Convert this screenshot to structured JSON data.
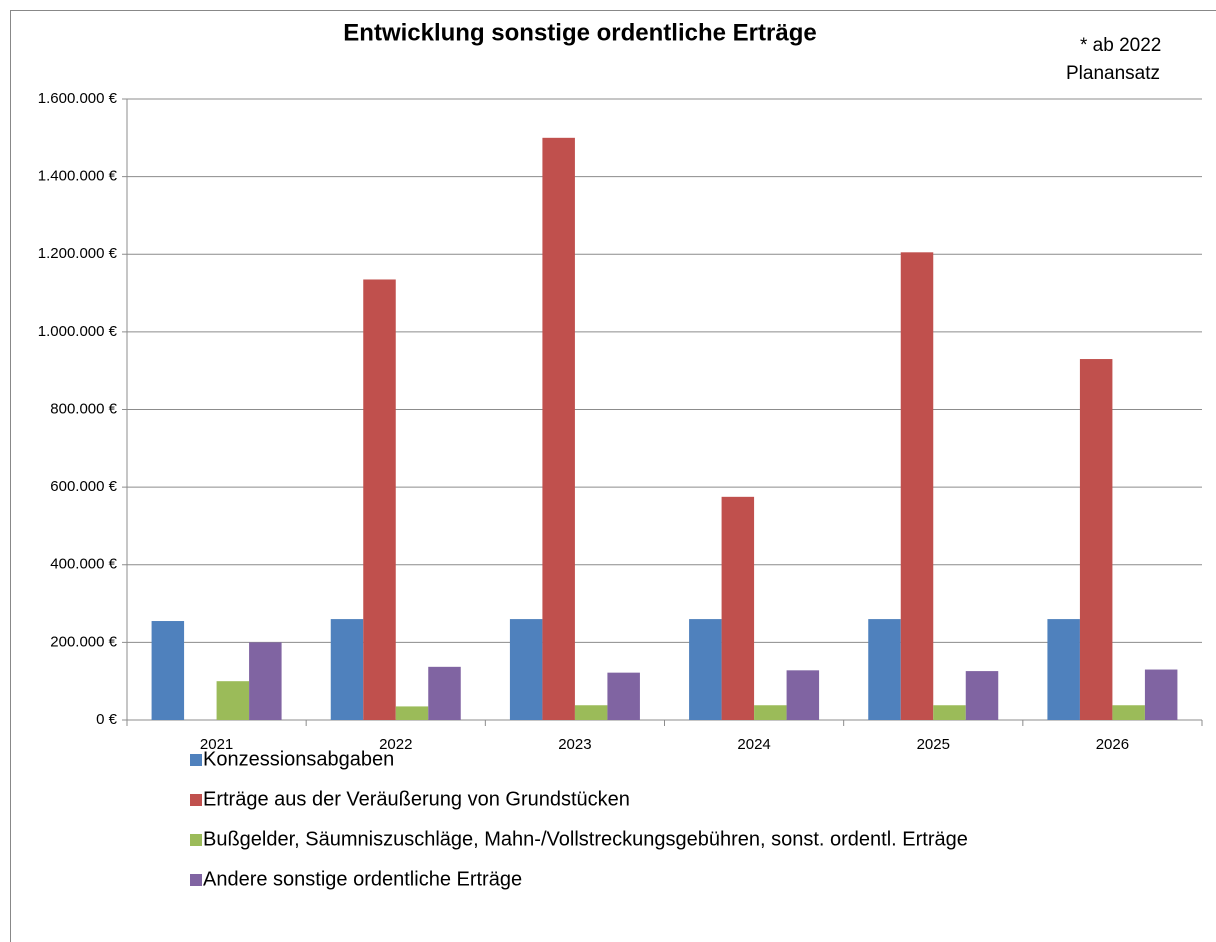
{
  "chart_data": {
    "type": "bar",
    "title": "Entwicklung sonstige ordentliche Erträge",
    "annotation": [
      "* ab 2022",
      "Planansatz"
    ],
    "categories": [
      "2021",
      "2022",
      "2023",
      "2024",
      "2025",
      "2026"
    ],
    "series": [
      {
        "name": "Konzessionsabgaben",
        "color": "#4f81bd",
        "values": [
          255000,
          260000,
          260000,
          260000,
          260000,
          260000
        ]
      },
      {
        "name": "Erträge aus der Veräußerung von Grundstücken",
        "color": "#c0504d",
        "values": [
          null,
          1135000,
          1500000,
          575000,
          1205000,
          930000
        ]
      },
      {
        "name": "Bußgelder, Säumniszuschläge, Mahn-/Vollstreckungsgebühren, sonst. ordentl. Erträge",
        "color": "#9bbb59",
        "values": [
          100000,
          35000,
          38000,
          38000,
          38000,
          38000
        ]
      },
      {
        "name": "Andere sonstige ordentliche Erträge",
        "color": "#8064a2",
        "values": [
          200000,
          137000,
          122000,
          128000,
          126000,
          130000
        ]
      }
    ],
    "ylim": [
      0,
      1600000
    ],
    "yticks": [
      {
        "value": 0,
        "label": "0 €"
      },
      {
        "value": 200000,
        "label": "200.000 €"
      },
      {
        "value": 400000,
        "label": "400.000 €"
      },
      {
        "value": 600000,
        "label": "600.000 €"
      },
      {
        "value": 800000,
        "label": "800.000 €"
      },
      {
        "value": 1000000,
        "label": "1.000.000 €"
      },
      {
        "value": 1200000,
        "label": "1.200.000 €"
      },
      {
        "value": 1400000,
        "label": "1.400.000 €"
      },
      {
        "value": 1600000,
        "label": "1.600.000 €"
      }
    ],
    "grid": true
  }
}
